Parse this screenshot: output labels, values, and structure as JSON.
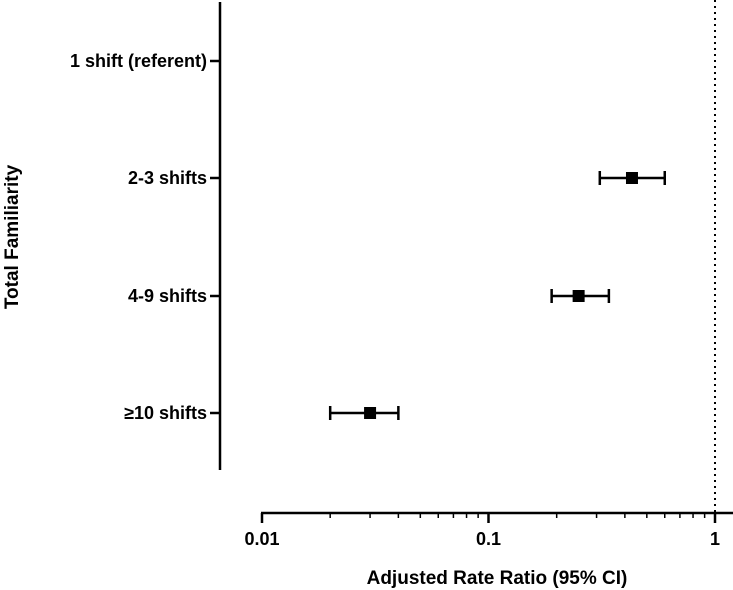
{
  "chart_data": {
    "type": "forest",
    "title": "",
    "xlabel": "Adjusted Rate Ratio (95% CI)",
    "ylabel": "Total Familiarity",
    "x_scale": "log",
    "xlim": [
      0.01,
      1
    ],
    "x_ticks": [
      "0.01",
      "0.1",
      "1"
    ],
    "reference_line": {
      "x": 1,
      "style": "dotted"
    },
    "grid": false,
    "categories": [
      "1 shift (referent)",
      "2-3 shifts",
      "4-9 shifts",
      "≥10 shifts"
    ],
    "points": [
      {
        "label": "1 shift (referent)",
        "estimate": null,
        "lower": null,
        "upper": null
      },
      {
        "label": "2-3 shifts",
        "estimate": 0.43,
        "lower": 0.31,
        "upper": 0.6
      },
      {
        "label": "4-9 shifts",
        "estimate": 0.25,
        "lower": 0.19,
        "upper": 0.34
      },
      {
        "label": "≥10 shifts",
        "estimate": 0.03,
        "lower": 0.02,
        "upper": 0.04
      }
    ]
  }
}
